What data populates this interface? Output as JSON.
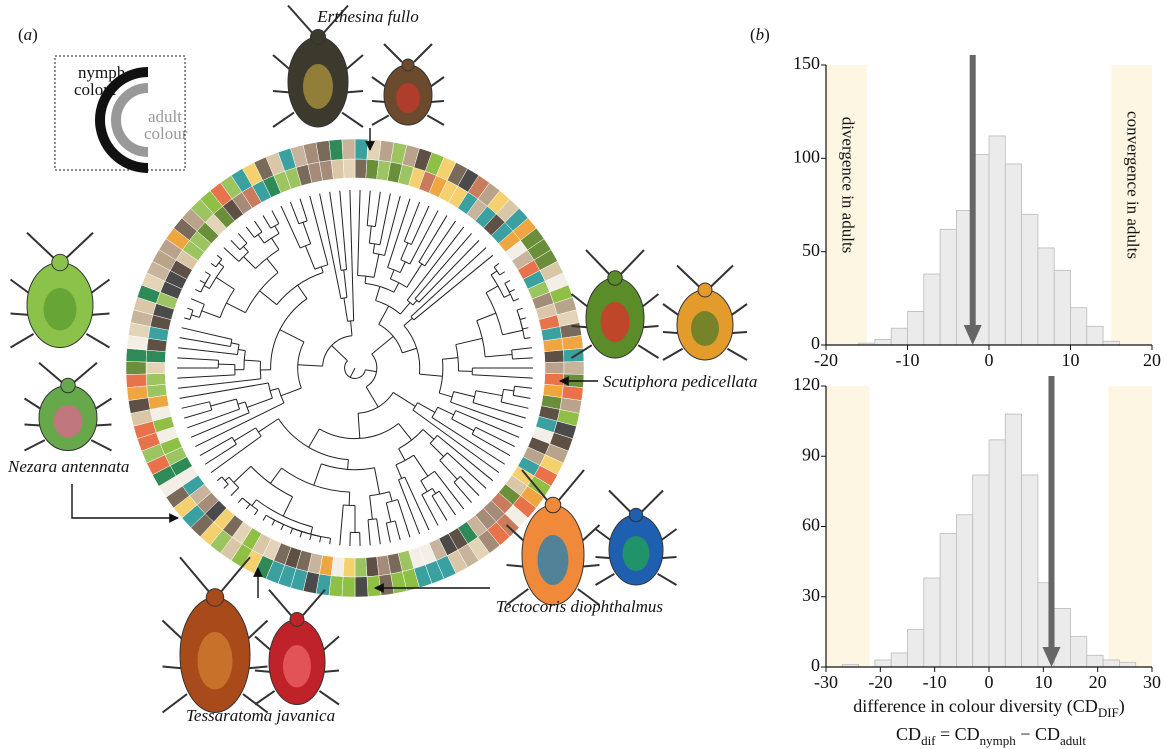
{
  "panel_labels": [
    "a",
    "b"
  ],
  "panel_a": {
    "legend": {
      "nymph": [
        "nymph",
        "colour"
      ],
      "adult": [
        "adult",
        "colour"
      ]
    },
    "species": [
      "Erthesina fullo",
      "Scutiphora pedicellata",
      "Nezara antennata",
      "Tectocoris diophthalmus",
      "Tessaratoma javanica"
    ]
  },
  "chart_data": [
    {
      "type": "histogram",
      "color": "#ebebeb",
      "bins": [
        -16,
        -14,
        -12,
        -10,
        -8,
        -6,
        -4,
        -2,
        0,
        2,
        4,
        6,
        8,
        10,
        12,
        14,
        16
      ],
      "values": [
        1,
        3,
        9,
        18,
        38,
        62,
        72,
        102,
        112,
        97,
        70,
        52,
        40,
        20,
        10,
        2
      ],
      "xlim": [
        -20,
        20
      ],
      "xticks": [
        -20,
        -10,
        0,
        10,
        20
      ],
      "ylim": [
        0,
        150
      ],
      "yticks": [
        0,
        50,
        100,
        150
      ],
      "observed": -2,
      "regions": [
        {
          "range": [
            -20,
            -15
          ],
          "label": "divergence in adults"
        },
        {
          "range": [
            15,
            20
          ],
          "label": "convergence in adults"
        }
      ]
    },
    {
      "type": "histogram",
      "color": "#ebebeb",
      "bins": [
        -27,
        -24,
        -21,
        -18,
        -15,
        -12,
        -9,
        -6,
        -3,
        0,
        3,
        6,
        9,
        12,
        15,
        18,
        21,
        24,
        27
      ],
      "values": [
        1,
        0,
        3,
        6,
        16,
        38,
        57,
        65,
        82,
        97,
        108,
        82,
        36,
        25,
        13,
        5,
        3,
        2
      ],
      "xlim": [
        -30,
        30
      ],
      "xticks": [
        -30,
        -20,
        -10,
        0,
        10,
        20,
        30
      ],
      "ylim": [
        0,
        120
      ],
      "yticks": [
        0,
        30,
        60,
        90,
        120
      ],
      "observed": 11.5,
      "regions": [
        {
          "range": [
            -30,
            -22
          ]
        },
        {
          "range": [
            22,
            30
          ]
        }
      ],
      "xlabel": [
        "difference in colour diversity (CD",
        "DIF",
        ")"
      ],
      "formula": [
        "CD",
        "dif",
        " = CD",
        "nymph",
        " − CD",
        "adult"
      ]
    }
  ]
}
